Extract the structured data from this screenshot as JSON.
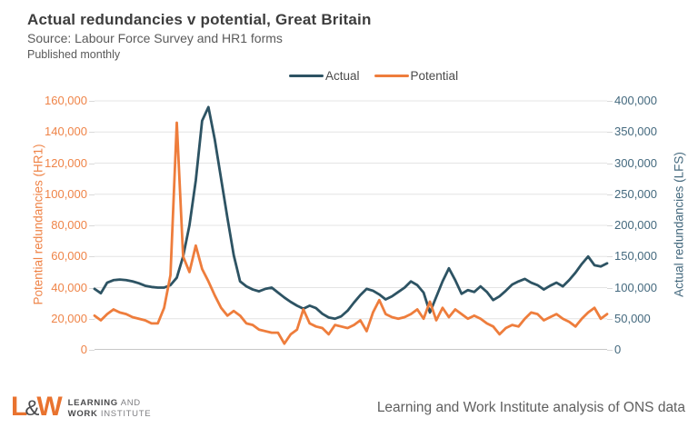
{
  "header": {
    "title": "Actual redundancies v potential, Great Britain",
    "source": "Source: Labour Force Survey and HR1 forms",
    "published": "Published monthly"
  },
  "legend": {
    "items": [
      {
        "label": "Actual",
        "color": "#2d5363"
      },
      {
        "label": "Potential",
        "color": "#ee7d3c"
      }
    ]
  },
  "chart_data": {
    "type": "line",
    "title": "Actual redundancies v potential, Great Britain",
    "x_axis": {
      "tick_labels_shown": false,
      "points": 82,
      "frequency": "monthly"
    },
    "left_axis": {
      "title": "Potential redundancies (HR1)",
      "color": "#ef8448",
      "min": 0,
      "max": 160000,
      "tick_labels": [
        "160,000",
        "140,000",
        "120,000",
        "100,000",
        "80,000",
        "60,000",
        "40,000",
        "20,000",
        "0"
      ]
    },
    "right_axis": {
      "title": "Actual redundancies (LFS)",
      "color": "#44697e",
      "min": 0,
      "max": 400000,
      "tick_labels": [
        "400,000",
        "350,000",
        "300,000",
        "250,000",
        "200,000",
        "150,000",
        "100,000",
        "50,000",
        "0"
      ]
    },
    "grid": {
      "horizontal": true,
      "color": "#e4e4e4",
      "axis_line_color": "#c8c8c8"
    },
    "legend_position": "top-center",
    "series": [
      {
        "name": "Actual",
        "axis": "right",
        "color": "#2d5363",
        "values": [
          98000,
          91000,
          108000,
          112000,
          113000,
          112000,
          110000,
          107000,
          103000,
          101000,
          100000,
          100000,
          104000,
          116000,
          150000,
          200000,
          272000,
          368000,
          390000,
          338000,
          275000,
          212000,
          152000,
          110000,
          102000,
          97000,
          94000,
          98000,
          100000,
          92000,
          84000,
          77000,
          71000,
          66000,
          71000,
          67000,
          58000,
          52000,
          50000,
          54000,
          63000,
          76000,
          88000,
          98000,
          95000,
          89000,
          81000,
          86000,
          93000,
          100000,
          110000,
          104000,
          92000,
          60000,
          85000,
          110000,
          131000,
          112000,
          90000,
          96000,
          93000,
          102000,
          93000,
          80000,
          86000,
          95000,
          105000,
          110000,
          114000,
          108000,
          104000,
          97000,
          103000,
          108000,
          102000,
          112000,
          124000,
          138000,
          150000,
          136000,
          134000,
          139000
        ]
      },
      {
        "name": "Potential",
        "axis": "left",
        "color": "#ee7d3c",
        "values": [
          22000,
          19000,
          23000,
          26000,
          24000,
          23000,
          21000,
          20000,
          19000,
          17000,
          17000,
          27000,
          48000,
          146000,
          60000,
          50000,
          67000,
          52000,
          44000,
          35000,
          27000,
          22000,
          25000,
          22000,
          17000,
          16000,
          13000,
          12000,
          11000,
          11000,
          4000,
          10000,
          13000,
          26000,
          17000,
          15000,
          14000,
          10000,
          16000,
          15000,
          14000,
          16000,
          19000,
          12000,
          24000,
          32000,
          23000,
          21000,
          20000,
          21000,
          23000,
          26000,
          20000,
          31000,
          19000,
          27000,
          21000,
          26000,
          23000,
          20000,
          22000,
          20000,
          17000,
          15000,
          10000,
          14000,
          16000,
          15000,
          20000,
          24000,
          23000,
          19000,
          21000,
          23000,
          20000,
          18000,
          15000,
          20000,
          24000,
          27000,
          20000,
          23000
        ]
      }
    ]
  },
  "footer": {
    "logo": {
      "mark_l": "L",
      "mark_amp": "&",
      "mark_w": "W",
      "line1_strong": "LEARNING",
      "line1_light": " AND",
      "line2_strong": "WORK",
      "line2_light": " INSTITUTE",
      "orange": "#e9732f"
    },
    "attribution": "Learning and Work Institute analysis of ONS data"
  }
}
